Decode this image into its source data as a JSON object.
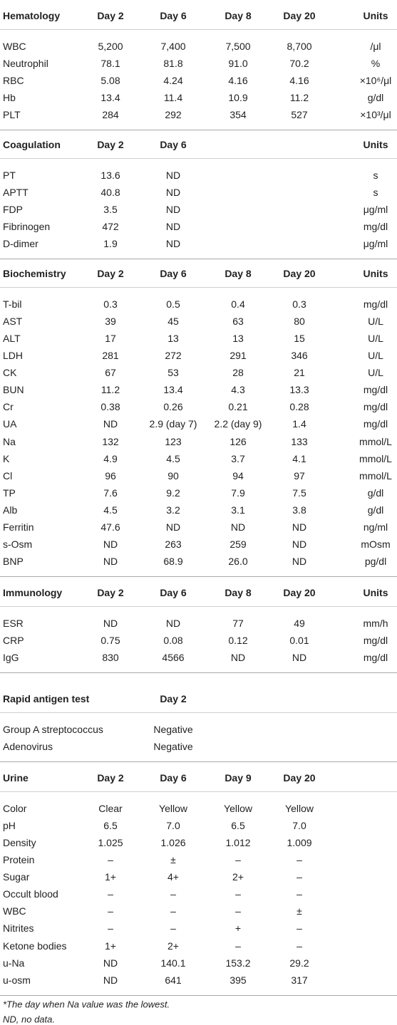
{
  "sections": [
    {
      "header": [
        "Hematology",
        "Day 2",
        "Day 6",
        "Day 8",
        "Day 20",
        "Units"
      ],
      "rows": [
        [
          "WBC",
          "5,200",
          "7,400",
          "7,500",
          "8,700",
          "/μl"
        ],
        [
          "Neutrophil",
          "78.1",
          "81.8",
          "91.0",
          "70.2",
          "%"
        ],
        [
          "RBC",
          "5.08",
          "4.24",
          "4.16",
          "4.16",
          "×10⁶/μl"
        ],
        [
          "Hb",
          "13.4",
          "11.4",
          "10.9",
          "11.2",
          "g/dl"
        ],
        [
          "PLT",
          "284",
          "292",
          "354",
          "527",
          "×10³/μl"
        ]
      ]
    },
    {
      "header": [
        "Coagulation",
        "Day 2",
        "Day 6",
        "Units"
      ],
      "rows": [
        [
          "PT",
          "13.6",
          "ND",
          "s"
        ],
        [
          "APTT",
          "40.8",
          "ND",
          "s"
        ],
        [
          "FDP",
          "3.5",
          "ND",
          "μg/ml"
        ],
        [
          "Fibrinogen",
          "472",
          "ND",
          "mg/dl"
        ],
        [
          "D-dimer",
          "1.9",
          "ND",
          "μg/ml"
        ]
      ]
    },
    {
      "header": [
        "Biochemistry",
        "Day 2",
        "Day 6",
        "Day 8",
        "Day 20",
        "Units"
      ],
      "rows": [
        [
          "T-bil",
          "0.3",
          "0.5",
          "0.4",
          "0.3",
          "mg/dl"
        ],
        [
          "AST",
          "39",
          "45",
          "63",
          "80",
          "U/L"
        ],
        [
          "ALT",
          "17",
          "13",
          "13",
          "15",
          "U/L"
        ],
        [
          "LDH",
          "281",
          "272",
          "291",
          "346",
          "U/L"
        ],
        [
          "CK",
          "67",
          "53",
          "28",
          "21",
          "U/L"
        ],
        [
          "BUN",
          "11.2",
          "13.4",
          "4.3",
          "13.3",
          "mg/dl"
        ],
        [
          "Cr",
          "0.38",
          "0.26",
          "0.21",
          "0.28",
          "mg/dl"
        ],
        [
          "UA",
          "ND",
          "2.9 (day 7)",
          "2.2 (day 9)",
          "1.4",
          "mg/dl"
        ],
        [
          "Na",
          "132",
          "123",
          "126",
          "133",
          "mmol/L"
        ],
        [
          "K",
          "4.9",
          "4.5",
          "3.7",
          "4.1",
          "mmol/L"
        ],
        [
          "Cl",
          "96",
          "90",
          "94",
          "97",
          "mmol/L"
        ],
        [
          "TP",
          "7.6",
          "9.2",
          "7.9",
          "7.5",
          "g/dl"
        ],
        [
          "Alb",
          "4.5",
          "3.2",
          "3.1",
          "3.8",
          "g/dl"
        ],
        [
          "Ferritin",
          "47.6",
          "ND",
          "ND",
          "ND",
          "ng/ml"
        ],
        [
          "s-Osm",
          "ND",
          "263",
          "259",
          "ND",
          "mOsm"
        ],
        [
          "BNP",
          "ND",
          "68.9",
          "26.0",
          "ND",
          "pg/dl"
        ]
      ]
    },
    {
      "header": [
        "Immunology",
        "Day 2",
        "Day 6",
        "Day 8",
        "Day 20",
        "Units"
      ],
      "rows": [
        [
          "ESR",
          "ND",
          "ND",
          "77",
          "49",
          "mm/h"
        ],
        [
          "CRP",
          "0.75",
          "0.08",
          "0.12",
          "0.01",
          "mg/dl"
        ],
        [
          "IgG",
          "830",
          "4566",
          "ND",
          "ND",
          "mg/dl"
        ]
      ]
    },
    {
      "header": [
        "Rapid antigen test",
        "Day 2"
      ],
      "rows": [
        [
          "Group A streptococcus",
          "Negative"
        ],
        [
          "Adenovirus",
          "Negative"
        ]
      ]
    },
    {
      "header": [
        "Urine",
        "Day 2",
        "Day 6",
        "Day 9",
        "Day 20"
      ],
      "rows": [
        [
          "Color",
          "Clear",
          "Yellow",
          "Yellow",
          "Yellow"
        ],
        [
          "pH",
          "6.5",
          "7.0",
          "6.5",
          "7.0"
        ],
        [
          "Density",
          "1.025",
          "1.026",
          "1.012",
          "1.009"
        ],
        [
          "Protein",
          "–",
          "±",
          "–",
          "–"
        ],
        [
          "Sugar",
          "1+",
          "4+",
          "2+",
          "–"
        ],
        [
          "Occult blood",
          "–",
          "–",
          "–",
          "–"
        ],
        [
          "WBC",
          "–",
          "–",
          "–",
          "±"
        ],
        [
          "Nitrites",
          "–",
          "–",
          "+",
          "–"
        ],
        [
          "Ketone bodies",
          "1+",
          "2+",
          "–",
          "–"
        ],
        [
          "u-Na",
          "ND",
          "140.1",
          "153.2",
          "29.2"
        ],
        [
          "u-osm",
          "ND",
          "641",
          "395",
          "317"
        ]
      ]
    }
  ],
  "footnotes": [
    "*The day when Na value was the lowest.",
    "ND, no data."
  ]
}
